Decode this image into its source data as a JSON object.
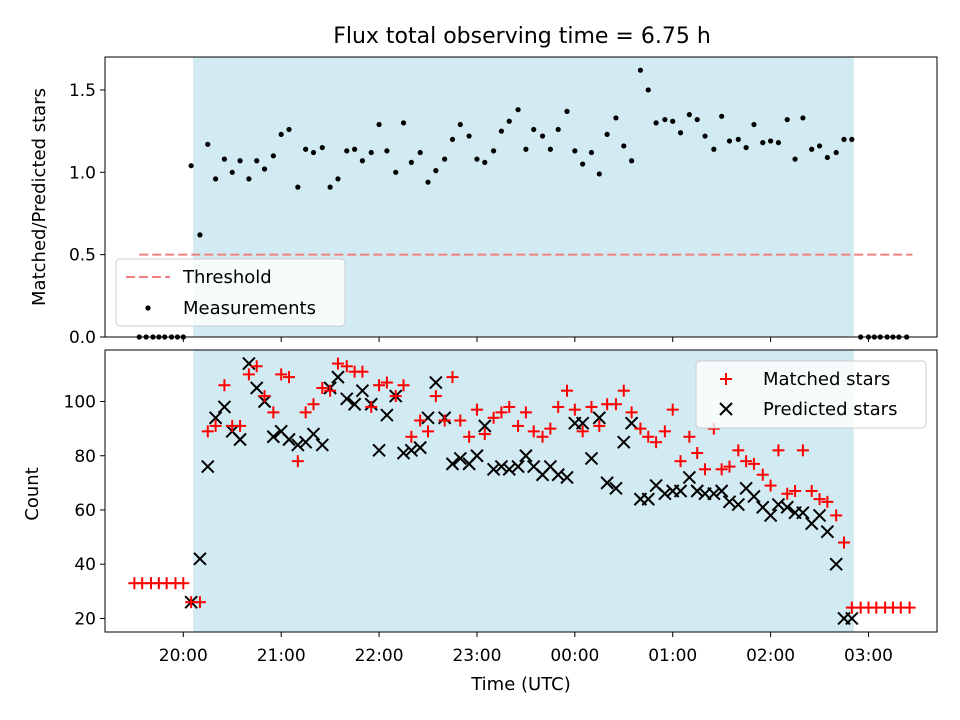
{
  "colors": {
    "shade": "#add8e6",
    "threshold": "#f08080",
    "measurement": "#000000",
    "matched": "#ff0000",
    "predicted": "#000000"
  },
  "chart_data": [
    {
      "type": "scatter",
      "title": "Flux total observing time = 6.75 h",
      "ylabel": "Matched/Predicted stars",
      "xlabel": "",
      "x_unit": "hours (UTC, continuous from 20:00 = 20)",
      "xlim": [
        19.2,
        27.7
      ],
      "ylim": [
        0,
        1.7
      ],
      "yticks": [
        0.0,
        0.5,
        1.0,
        1.5
      ],
      "ytick_labels": [
        "0.0",
        "0.5",
        "1.0",
        "1.5"
      ],
      "shaded_span": [
        20.1,
        26.85
      ],
      "legend_position": "lower-left",
      "legend": [
        "Threshold",
        "Measurements"
      ],
      "threshold": {
        "name": "Threshold",
        "y": 0.5,
        "x_start": 19.55,
        "x_end": 27.45
      },
      "measurements": {
        "name": "Measurements",
        "x": [
          19.55,
          19.62,
          19.69,
          19.75,
          19.81,
          19.88,
          19.94,
          20.0,
          20.08,
          20.17,
          20.25,
          20.33,
          20.42,
          20.5,
          20.58,
          20.67,
          20.75,
          20.83,
          20.92,
          21.0,
          21.08,
          21.17,
          21.25,
          21.33,
          21.42,
          21.5,
          21.58,
          21.67,
          21.75,
          21.83,
          21.92,
          22.0,
          22.08,
          22.17,
          22.25,
          22.33,
          22.42,
          22.5,
          22.58,
          22.67,
          22.75,
          22.83,
          22.92,
          23.0,
          23.08,
          23.17,
          23.25,
          23.33,
          23.42,
          23.5,
          23.58,
          23.67,
          23.75,
          23.83,
          23.92,
          24.0,
          24.08,
          24.17,
          24.25,
          24.33,
          24.42,
          24.5,
          24.58,
          24.67,
          24.75,
          24.83,
          24.92,
          25.0,
          25.08,
          25.17,
          25.25,
          25.33,
          25.42,
          25.5,
          25.58,
          25.67,
          25.75,
          25.83,
          25.92,
          26.0,
          26.08,
          26.17,
          26.25,
          26.33,
          26.42,
          26.5,
          26.58,
          26.67,
          26.75,
          26.83,
          26.92,
          27.0,
          27.06,
          27.12,
          27.19,
          27.25,
          27.31,
          27.39
        ],
        "y": [
          0,
          0,
          0,
          0,
          0,
          0,
          0,
          0,
          1.04,
          0.62,
          1.17,
          0.96,
          1.08,
          1.0,
          1.07,
          0.96,
          1.07,
          1.02,
          1.1,
          1.23,
          1.26,
          0.91,
          1.14,
          1.12,
          1.15,
          0.91,
          0.96,
          1.13,
          1.14,
          1.07,
          1.12,
          1.29,
          1.13,
          1.0,
          1.3,
          1.06,
          1.12,
          0.94,
          1.01,
          1.08,
          1.2,
          1.29,
          1.22,
          1.08,
          1.06,
          1.13,
          1.25,
          1.31,
          1.38,
          1.14,
          1.26,
          1.22,
          1.14,
          1.26,
          1.37,
          1.13,
          1.05,
          1.12,
          0.99,
          1.23,
          1.33,
          1.16,
          1.07,
          1.62,
          1.5,
          1.3,
          1.32,
          1.31,
          1.24,
          1.35,
          1.32,
          1.22,
          1.14,
          1.34,
          1.19,
          1.2,
          1.15,
          1.29,
          1.18,
          1.19,
          1.18,
          1.32,
          1.08,
          1.33,
          1.14,
          1.16,
          1.09,
          1.12,
          1.2,
          1.2,
          0,
          0,
          0,
          0,
          0,
          0,
          0,
          0
        ]
      }
    },
    {
      "type": "scatter",
      "title": "",
      "ylabel": "Count",
      "xlabel": "Time (UTC)",
      "x_unit": "hours (UTC, continuous from 20:00 = 20)",
      "xlim": [
        19.2,
        27.7
      ],
      "ylim": [
        15,
        119
      ],
      "yticks": [
        20,
        40,
        60,
        80,
        100
      ],
      "ytick_labels": [
        "20",
        "40",
        "60",
        "80",
        "100"
      ],
      "xticks": [
        20,
        21,
        22,
        23,
        24,
        25,
        26,
        27
      ],
      "xtick_labels": [
        "20:00",
        "21:00",
        "22:00",
        "23:00",
        "00:00",
        "01:00",
        "02:00",
        "03:00"
      ],
      "shaded_span": [
        20.1,
        26.85
      ],
      "legend_position": "upper-right",
      "legend": [
        "Matched stars",
        "Predicted stars"
      ],
      "series": [
        {
          "name": "Matched stars",
          "marker": "+",
          "x": [
            19.5,
            19.58,
            19.67,
            19.75,
            19.83,
            19.92,
            20.0,
            20.08,
            20.17,
            20.25,
            20.33,
            20.42,
            20.5,
            20.58,
            20.67,
            20.75,
            20.83,
            20.92,
            21.0,
            21.08,
            21.17,
            21.25,
            21.33,
            21.42,
            21.5,
            21.58,
            21.67,
            21.75,
            21.83,
            21.92,
            22.0,
            22.08,
            22.17,
            22.25,
            22.33,
            22.42,
            22.5,
            22.58,
            22.67,
            22.75,
            22.83,
            22.92,
            23.0,
            23.08,
            23.17,
            23.25,
            23.33,
            23.42,
            23.5,
            23.58,
            23.67,
            23.75,
            23.83,
            23.92,
            24.0,
            24.08,
            24.17,
            24.25,
            24.33,
            24.42,
            24.5,
            24.58,
            24.67,
            24.75,
            24.83,
            24.92,
            25.0,
            25.08,
            25.17,
            25.25,
            25.33,
            25.42,
            25.5,
            25.58,
            25.67,
            25.75,
            25.83,
            25.92,
            26.0,
            26.08,
            26.17,
            26.25,
            26.33,
            26.42,
            26.5,
            26.58,
            26.67,
            26.75,
            26.83,
            26.92,
            27.0,
            27.08,
            27.17,
            27.25,
            27.33,
            27.42
          ],
          "y": [
            33,
            33,
            33,
            33,
            33,
            33,
            33,
            26,
            26,
            89,
            91,
            106,
            91,
            91,
            110,
            113,
            102,
            96,
            110,
            109,
            78,
            96,
            99,
            105,
            104,
            114,
            113,
            111,
            111,
            98,
            106,
            107,
            102,
            106,
            87,
            93,
            89,
            102,
            93,
            109,
            93,
            87,
            97,
            88,
            94,
            96,
            98,
            91,
            96,
            89,
            87,
            90,
            98,
            104,
            97,
            89,
            98,
            91,
            99,
            99,
            104,
            96,
            90,
            87,
            85,
            89,
            97,
            78,
            87,
            81,
            75,
            90,
            75,
            76,
            82,
            78,
            77,
            73,
            69,
            82,
            66,
            67,
            82,
            67,
            64,
            63,
            58,
            48,
            24,
            24,
            24,
            24,
            24,
            24,
            24,
            24
          ],
          "y_note": "approx"
        },
        {
          "name": "Predicted stars",
          "marker": "x",
          "x": [
            20.08,
            20.17,
            20.25,
            20.33,
            20.42,
            20.5,
            20.58,
            20.67,
            20.75,
            20.83,
            20.92,
            21.0,
            21.08,
            21.17,
            21.25,
            21.33,
            21.42,
            21.5,
            21.58,
            21.67,
            21.75,
            21.83,
            21.92,
            22.0,
            22.08,
            22.17,
            22.25,
            22.33,
            22.42,
            22.5,
            22.58,
            22.67,
            22.75,
            22.83,
            22.92,
            23.0,
            23.08,
            23.17,
            23.25,
            23.33,
            23.42,
            23.5,
            23.58,
            23.67,
            23.75,
            23.83,
            23.92,
            24.0,
            24.08,
            24.17,
            24.25,
            24.33,
            24.42,
            24.5,
            24.58,
            24.67,
            24.75,
            24.83,
            24.92,
            25.0,
            25.08,
            25.17,
            25.25,
            25.33,
            25.42,
            25.5,
            25.58,
            25.67,
            25.75,
            25.83,
            25.92,
            26.0,
            26.08,
            26.17,
            26.25,
            26.33,
            26.42,
            26.5,
            26.58,
            26.67,
            26.75,
            26.83
          ],
          "y": [
            26,
            42,
            76,
            94,
            98,
            89,
            86,
            114,
            105,
            100,
            87,
            89,
            86,
            84,
            85,
            88,
            84,
            105,
            109,
            101,
            99,
            104,
            99,
            82,
            95,
            102,
            81,
            82,
            83,
            94,
            107,
            94,
            77,
            79,
            77,
            80,
            91,
            75,
            76,
            75,
            76,
            80,
            76,
            73,
            76,
            73,
            72,
            92,
            92,
            79,
            94,
            70,
            68,
            85,
            92,
            64,
            64,
            69,
            66,
            67,
            67,
            72,
            67,
            66,
            66,
            67,
            63,
            62,
            68,
            65,
            61,
            58,
            62,
            61,
            59,
            59,
            55,
            58,
            52,
            40,
            20,
            20
          ],
          "y_note": "approx"
        }
      ]
    }
  ]
}
